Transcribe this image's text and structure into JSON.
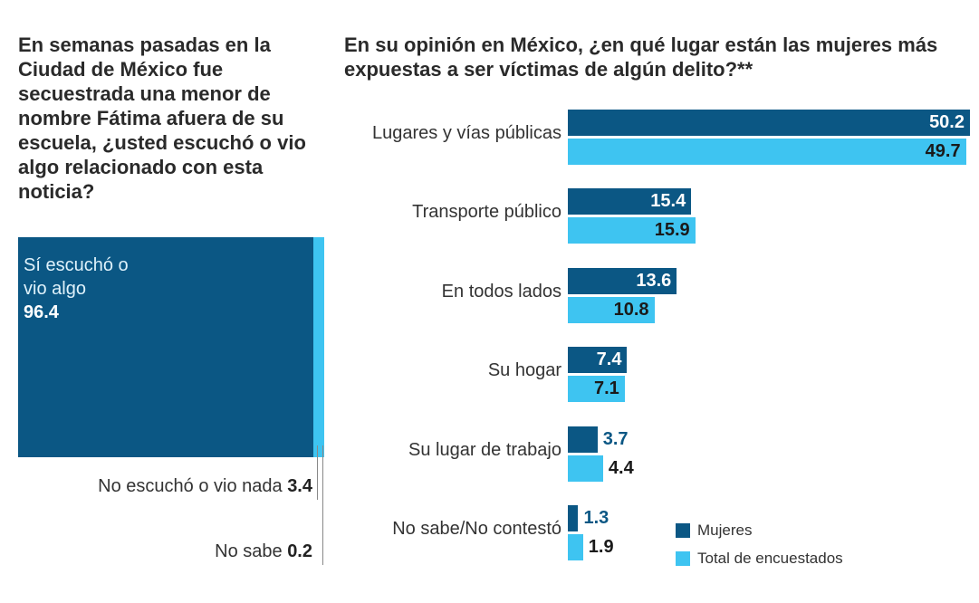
{
  "colors": {
    "mujeres": "#0b5784",
    "total": "#3ec4f1"
  },
  "chart_data": [
    {
      "type": "bar",
      "stacked": true,
      "title": "En semanas pasadas en la Ciudad de México fue secuestrada una menor de nombre Fátima afuera de su escuela, ¿usted escuchó o vio algo relacionado con esta noticia?",
      "categories": [
        "Sí escuchó o vio algo",
        "No escuchó o vio nada",
        "No sabe"
      ],
      "first_label_lines": [
        "Sí escuchó o",
        "vio algo"
      ],
      "values": [
        96.4,
        3.4,
        0.2
      ],
      "labels": [
        "96.4",
        "3.4",
        "0.2"
      ]
    },
    {
      "type": "bar",
      "orientation": "horizontal",
      "title": "En su opinión en México, ¿en qué lugar están las mujeres más expuestas a ser víctimas de algún delito?**",
      "categories": [
        "Lugares y vías públicas",
        "Transporte público",
        "En todos lados",
        "Su hogar",
        "Su lugar de trabajo",
        "No sabe/No contestó"
      ],
      "series": [
        {
          "name": "Mujeres",
          "values": [
            50.2,
            15.4,
            13.6,
            7.4,
            3.7,
            1.3
          ],
          "labels": [
            "50.2",
            "15.4",
            "13.6",
            "7.4",
            "3.7",
            "1.3"
          ]
        },
        {
          "name": "Total de encuestados",
          "values": [
            49.7,
            15.9,
            10.8,
            7.1,
            4.4,
            1.9
          ],
          "labels": [
            "49.7",
            "15.9",
            "10.8",
            "7.1",
            "4.4",
            "1.9"
          ]
        }
      ],
      "legend": "bottom-right"
    }
  ]
}
